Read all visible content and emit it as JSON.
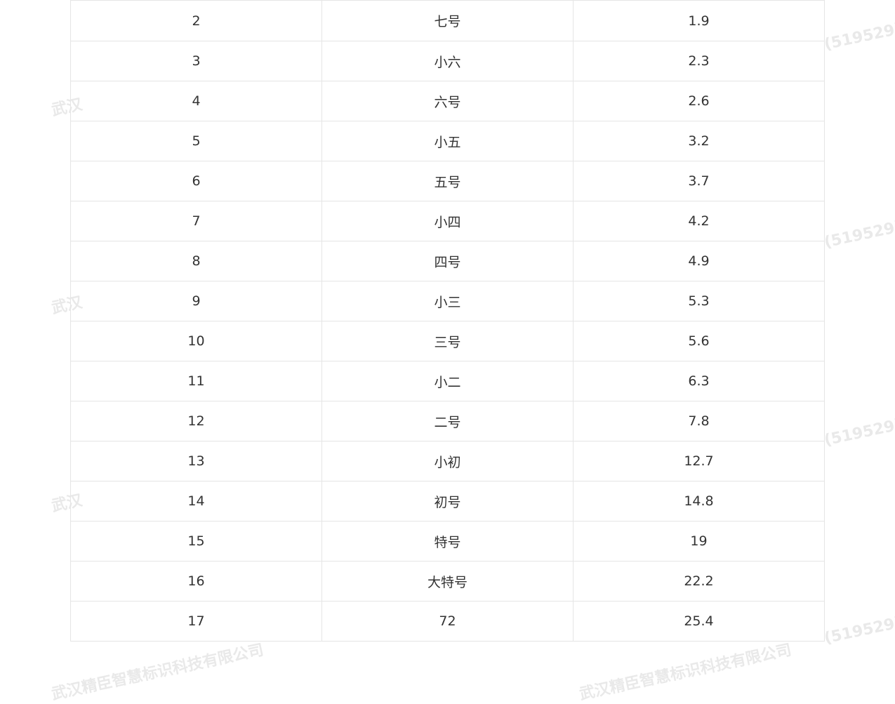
{
  "watermark": {
    "company": "武汉精臣智慧标识科技有限公司",
    "code": "(519529)",
    "edge_fragment": "武汉"
  },
  "table": {
    "rows": [
      {
        "no": "2",
        "name": "七号",
        "size": "1.9"
      },
      {
        "no": "3",
        "name": "小六",
        "size": "2.3"
      },
      {
        "no": "4",
        "name": "六号",
        "size": "2.6"
      },
      {
        "no": "5",
        "name": "小五",
        "size": "3.2"
      },
      {
        "no": "6",
        "name": "五号",
        "size": "3.7"
      },
      {
        "no": "7",
        "name": "小四",
        "size": "4.2"
      },
      {
        "no": "8",
        "name": "四号",
        "size": "4.9"
      },
      {
        "no": "9",
        "name": "小三",
        "size": "5.3"
      },
      {
        "no": "10",
        "name": "三号",
        "size": "5.6"
      },
      {
        "no": "11",
        "name": "小二",
        "size": "6.3"
      },
      {
        "no": "12",
        "name": "二号",
        "size": "7.8"
      },
      {
        "no": "13",
        "name": "小初",
        "size": "12.7"
      },
      {
        "no": "14",
        "name": "初号",
        "size": "14.8"
      },
      {
        "no": "15",
        "name": "特号",
        "size": "19"
      },
      {
        "no": "16",
        "name": "大特号",
        "size": "22.2"
      },
      {
        "no": "17",
        "name": "72",
        "size": "25.4"
      }
    ]
  }
}
